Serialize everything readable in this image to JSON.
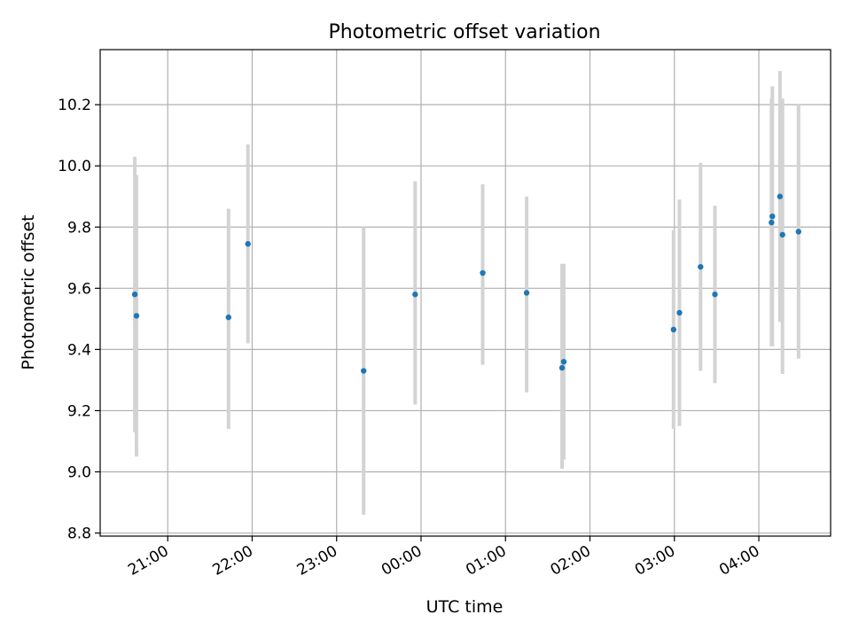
{
  "chart_data": {
    "type": "scatter",
    "title": "Photometric offset variation",
    "xlabel": "UTC time",
    "ylabel": "Photometric offset",
    "grid": true,
    "legend": "none",
    "colors": {
      "point": "#1f77b4",
      "error_bar": "#d3d3d3",
      "grid": "#b0b0b0"
    },
    "xlim_hours": [
      20.2,
      28.85
    ],
    "ylim": [
      8.79,
      10.38
    ],
    "x_ticks": [
      {
        "value": 21,
        "label": "21:00"
      },
      {
        "value": 22,
        "label": "22:00"
      },
      {
        "value": 23,
        "label": "23:00"
      },
      {
        "value": 24,
        "label": "00:00"
      },
      {
        "value": 25,
        "label": "01:00"
      },
      {
        "value": 26,
        "label": "02:00"
      },
      {
        "value": 27,
        "label": "03:00"
      },
      {
        "value": 28,
        "label": "04:00"
      }
    ],
    "y_ticks": [
      {
        "value": 8.8,
        "label": "8.8"
      },
      {
        "value": 9.0,
        "label": "9.0"
      },
      {
        "value": 9.2,
        "label": "9.2"
      },
      {
        "value": 9.4,
        "label": "9.4"
      },
      {
        "value": 9.6,
        "label": "9.6"
      },
      {
        "value": 9.8,
        "label": "9.8"
      },
      {
        "value": 10.0,
        "label": "10.0"
      },
      {
        "value": 10.2,
        "label": "10.2"
      }
    ],
    "points": [
      {
        "x": 20.61,
        "y": 9.58,
        "lo": 9.13,
        "hi": 10.03
      },
      {
        "x": 20.63,
        "y": 9.51,
        "lo": 9.05,
        "hi": 9.97
      },
      {
        "x": 21.72,
        "y": 9.505,
        "lo": 9.14,
        "hi": 9.86
      },
      {
        "x": 21.95,
        "y": 9.745,
        "lo": 9.42,
        "hi": 10.07
      },
      {
        "x": 23.32,
        "y": 9.33,
        "lo": 8.86,
        "hi": 9.8
      },
      {
        "x": 23.93,
        "y": 9.58,
        "lo": 9.22,
        "hi": 9.95
      },
      {
        "x": 24.73,
        "y": 9.65,
        "lo": 9.35,
        "hi": 9.94
      },
      {
        "x": 25.25,
        "y": 9.585,
        "lo": 9.26,
        "hi": 9.9
      },
      {
        "x": 25.67,
        "y": 9.34,
        "lo": 9.01,
        "hi": 9.68
      },
      {
        "x": 25.69,
        "y": 9.36,
        "lo": 9.04,
        "hi": 9.68
      },
      {
        "x": 26.99,
        "y": 9.465,
        "lo": 9.14,
        "hi": 9.79
      },
      {
        "x": 27.06,
        "y": 9.52,
        "lo": 9.15,
        "hi": 9.89
      },
      {
        "x": 27.31,
        "y": 9.67,
        "lo": 9.33,
        "hi": 10.01
      },
      {
        "x": 27.48,
        "y": 9.58,
        "lo": 9.29,
        "hi": 9.87
      },
      {
        "x": 28.15,
        "y": 9.815,
        "lo": 9.41,
        "hi": 10.22
      },
      {
        "x": 28.16,
        "y": 9.835,
        "lo": 9.41,
        "hi": 10.26
      },
      {
        "x": 28.25,
        "y": 9.9,
        "lo": 9.49,
        "hi": 10.31
      },
      {
        "x": 28.28,
        "y": 9.775,
        "lo": 9.32,
        "hi": 10.22
      },
      {
        "x": 28.47,
        "y": 9.785,
        "lo": 9.37,
        "hi": 10.2
      }
    ]
  }
}
